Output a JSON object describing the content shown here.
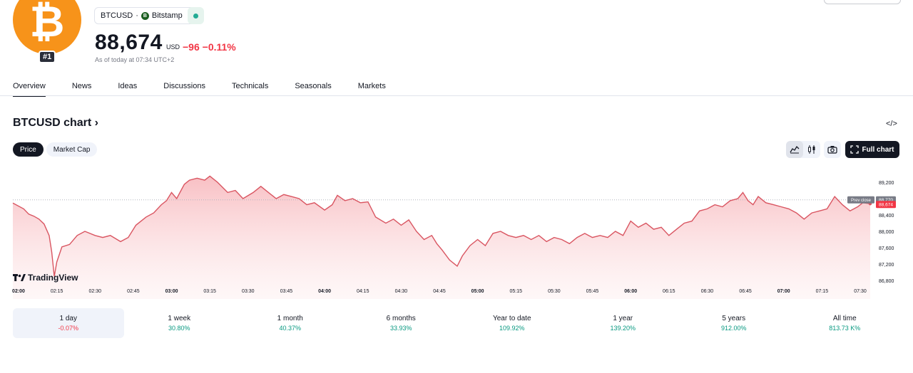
{
  "header": {
    "logo_glyph": "₿",
    "rank": "#1",
    "symbol": "BTCUSD",
    "separator": "·",
    "exchange": "Bitstamp",
    "exchange_icon_glyph": "B",
    "price": "88,674",
    "currency": "USD",
    "change": "−96",
    "change_pct": "−0.11%",
    "as_of": "As of today at 07:34 UTC+2"
  },
  "tabs": [
    "Overview",
    "News",
    "Ideas",
    "Discussions",
    "Technicals",
    "Seasonals",
    "Markets"
  ],
  "chart_section": {
    "title": "BTCUSD chart ›",
    "embed_glyph": "</>",
    "toggle": [
      "Price",
      "Market Cap"
    ],
    "full_chart_label": "Full chart",
    "brand": "TradingView"
  },
  "colors": {
    "up": "#089981",
    "down": "#f23645",
    "line": "#d95561",
    "dark": "#131722"
  },
  "chart_data": {
    "type": "area",
    "x_ticks": [
      "02:00",
      "02:15",
      "02:30",
      "02:45",
      "03:00",
      "03:15",
      "03:30",
      "03:45",
      "04:00",
      "04:15",
      "04:30",
      "04:45",
      "05:00",
      "05:15",
      "05:30",
      "05:45",
      "06:00",
      "06:15",
      "06:30",
      "06:45",
      "07:00",
      "07:15",
      "07:30"
    ],
    "y_ticks": [
      "89,200",
      "88,800",
      "88,400",
      "88,000",
      "87,600",
      "87,200",
      "86,800"
    ],
    "ylim": [
      86800,
      89200
    ],
    "prev_close_label": "Prev close",
    "prev_close": 88770,
    "prev_close_text": "88,770",
    "last": 88674,
    "last_text": "88,674",
    "series": [
      {
        "t": "02:00",
        "v": 88690
      },
      {
        "t": "02:02",
        "v": 88550
      },
      {
        "t": "02:04",
        "v": 88420
      },
      {
        "t": "02:06",
        "v": 88370
      },
      {
        "t": "02:08",
        "v": 88300
      },
      {
        "t": "02:10",
        "v": 88180
      },
      {
        "t": "02:12",
        "v": 87900
      },
      {
        "t": "02:13",
        "v": 87500
      },
      {
        "t": "02:14",
        "v": 86900
      },
      {
        "t": "02:15",
        "v": 87250
      },
      {
        "t": "02:17",
        "v": 87620
      },
      {
        "t": "02:20",
        "v": 87680
      },
      {
        "t": "02:23",
        "v": 87900
      },
      {
        "t": "02:26",
        "v": 88000
      },
      {
        "t": "02:30",
        "v": 87900
      },
      {
        "t": "02:33",
        "v": 87850
      },
      {
        "t": "02:36",
        "v": 87900
      },
      {
        "t": "02:40",
        "v": 87750
      },
      {
        "t": "02:43",
        "v": 87850
      },
      {
        "t": "02:46",
        "v": 88150
      },
      {
        "t": "02:50",
        "v": 88350
      },
      {
        "t": "02:53",
        "v": 88450
      },
      {
        "t": "02:56",
        "v": 88650
      },
      {
        "t": "02:58",
        "v": 88750
      },
      {
        "t": "03:00",
        "v": 88950
      },
      {
        "t": "03:02",
        "v": 88800
      },
      {
        "t": "03:05",
        "v": 89150
      },
      {
        "t": "03:07",
        "v": 89250
      },
      {
        "t": "03:10",
        "v": 89300
      },
      {
        "t": "03:13",
        "v": 89250
      },
      {
        "t": "03:15",
        "v": 89350
      },
      {
        "t": "03:18",
        "v": 89200
      },
      {
        "t": "03:22",
        "v": 88950
      },
      {
        "t": "03:25",
        "v": 89000
      },
      {
        "t": "03:28",
        "v": 88800
      },
      {
        "t": "03:32",
        "v": 88950
      },
      {
        "t": "03:35",
        "v": 89100
      },
      {
        "t": "03:38",
        "v": 88950
      },
      {
        "t": "03:41",
        "v": 88800
      },
      {
        "t": "03:44",
        "v": 88900
      },
      {
        "t": "03:47",
        "v": 88850
      },
      {
        "t": "03:50",
        "v": 88800
      },
      {
        "t": "03:53",
        "v": 88650
      },
      {
        "t": "03:56",
        "v": 88700
      },
      {
        "t": "04:00",
        "v": 88520
      },
      {
        "t": "04:03",
        "v": 88650
      },
      {
        "t": "04:05",
        "v": 88880
      },
      {
        "t": "04:08",
        "v": 88750
      },
      {
        "t": "04:11",
        "v": 88800
      },
      {
        "t": "04:14",
        "v": 88700
      },
      {
        "t": "04:17",
        "v": 88720
      },
      {
        "t": "04:20",
        "v": 88350
      },
      {
        "t": "04:24",
        "v": 88200
      },
      {
        "t": "04:27",
        "v": 88300
      },
      {
        "t": "04:30",
        "v": 88150
      },
      {
        "t": "04:33",
        "v": 88280
      },
      {
        "t": "04:36",
        "v": 88000
      },
      {
        "t": "04:39",
        "v": 87800
      },
      {
        "t": "04:42",
        "v": 87900
      },
      {
        "t": "04:44",
        "v": 87700
      },
      {
        "t": "04:46",
        "v": 87550
      },
      {
        "t": "04:49",
        "v": 87300
      },
      {
        "t": "04:52",
        "v": 87150
      },
      {
        "t": "04:54",
        "v": 87400
      },
      {
        "t": "04:57",
        "v": 87650
      },
      {
        "t": "05:00",
        "v": 87800
      },
      {
        "t": "05:03",
        "v": 87650
      },
      {
        "t": "05:06",
        "v": 87950
      },
      {
        "t": "05:09",
        "v": 88000
      },
      {
        "t": "05:12",
        "v": 87900
      },
      {
        "t": "05:15",
        "v": 87850
      },
      {
        "t": "05:18",
        "v": 87900
      },
      {
        "t": "05:21",
        "v": 87800
      },
      {
        "t": "05:24",
        "v": 87900
      },
      {
        "t": "05:27",
        "v": 87750
      },
      {
        "t": "05:30",
        "v": 87850
      },
      {
        "t": "05:33",
        "v": 87800
      },
      {
        "t": "05:36",
        "v": 87700
      },
      {
        "t": "05:39",
        "v": 87850
      },
      {
        "t": "05:42",
        "v": 87950
      },
      {
        "t": "05:45",
        "v": 87850
      },
      {
        "t": "05:48",
        "v": 87900
      },
      {
        "t": "05:51",
        "v": 87850
      },
      {
        "t": "05:54",
        "v": 88000
      },
      {
        "t": "05:57",
        "v": 87900
      },
      {
        "t": "06:00",
        "v": 88250
      },
      {
        "t": "06:03",
        "v": 88100
      },
      {
        "t": "06:06",
        "v": 88200
      },
      {
        "t": "06:09",
        "v": 88050
      },
      {
        "t": "06:12",
        "v": 88100
      },
      {
        "t": "06:15",
        "v": 87900
      },
      {
        "t": "06:18",
        "v": 88050
      },
      {
        "t": "06:21",
        "v": 88200
      },
      {
        "t": "06:24",
        "v": 88250
      },
      {
        "t": "06:27",
        "v": 88500
      },
      {
        "t": "06:30",
        "v": 88550
      },
      {
        "t": "06:33",
        "v": 88650
      },
      {
        "t": "06:36",
        "v": 88600
      },
      {
        "t": "06:39",
        "v": 88750
      },
      {
        "t": "06:42",
        "v": 88800
      },
      {
        "t": "06:44",
        "v": 88950
      },
      {
        "t": "06:46",
        "v": 88750
      },
      {
        "t": "06:48",
        "v": 88650
      },
      {
        "t": "06:50",
        "v": 88850
      },
      {
        "t": "06:53",
        "v": 88700
      },
      {
        "t": "06:56",
        "v": 88650
      },
      {
        "t": "06:59",
        "v": 88600
      },
      {
        "t": "07:02",
        "v": 88550
      },
      {
        "t": "07:05",
        "v": 88450
      },
      {
        "t": "07:08",
        "v": 88300
      },
      {
        "t": "07:11",
        "v": 88450
      },
      {
        "t": "07:14",
        "v": 88500
      },
      {
        "t": "07:17",
        "v": 88550
      },
      {
        "t": "07:20",
        "v": 88850
      },
      {
        "t": "07:23",
        "v": 88650
      },
      {
        "t": "07:26",
        "v": 88500
      },
      {
        "t": "07:29",
        "v": 88600
      },
      {
        "t": "07:31",
        "v": 88700
      },
      {
        "t": "07:33",
        "v": 88674
      }
    ]
  },
  "periods": [
    {
      "label": "1 day",
      "value": "-0.07%",
      "dir": "neg",
      "active": true
    },
    {
      "label": "1 week",
      "value": "30.80%",
      "dir": "pos"
    },
    {
      "label": "1 month",
      "value": "40.37%",
      "dir": "pos"
    },
    {
      "label": "6 months",
      "value": "33.93%",
      "dir": "pos"
    },
    {
      "label": "Year to date",
      "value": "109.92%",
      "dir": "pos"
    },
    {
      "label": "1 year",
      "value": "139.20%",
      "dir": "pos"
    },
    {
      "label": "5 years",
      "value": "912.00%",
      "dir": "pos"
    },
    {
      "label": "All time",
      "value": "813.73 K%",
      "dir": "pos"
    }
  ]
}
